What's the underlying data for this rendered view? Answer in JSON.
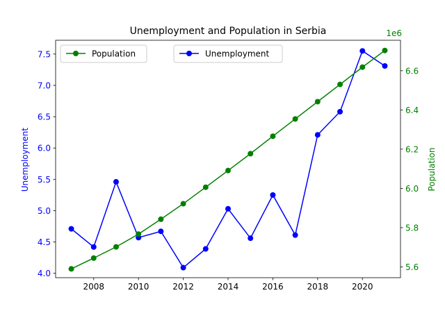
{
  "chart_data": {
    "type": "line",
    "title": "Unemployment and Population in Serbia",
    "xlabel": "",
    "x": [
      2007,
      2008,
      2009,
      2010,
      2011,
      2012,
      2013,
      2014,
      2015,
      2016,
      2017,
      2018,
      2019,
      2020,
      2021
    ],
    "xlim": [
      2006.3,
      2021.7
    ],
    "xticks": [
      "2008",
      "2010",
      "2012",
      "2014",
      "2016",
      "2018",
      "2020"
    ],
    "left_axis": {
      "label": "Unemployment",
      "color": "#0000ff",
      "ylim": [
        3.93,
        7.72
      ],
      "ticks": [
        "4.0",
        "4.5",
        "5.0",
        "5.5",
        "6.0",
        "6.5",
        "7.0",
        "7.5"
      ]
    },
    "right_axis": {
      "label": "Population",
      "color": "#008000",
      "offset_text": "1e6",
      "ylim": [
        5.545,
        6.755
      ],
      "ticks": [
        "5.6",
        "5.8",
        "6.0",
        "6.2",
        "6.4",
        "6.6"
      ]
    },
    "series": [
      {
        "name": "Unemployment",
        "axis": "left",
        "color": "#0000ff",
        "values": [
          4.71,
          4.42,
          5.46,
          4.57,
          4.67,
          4.09,
          4.39,
          5.03,
          4.56,
          5.25,
          4.61,
          6.21,
          6.58,
          7.55,
          7.31
        ]
      },
      {
        "name": "Population",
        "axis": "right",
        "color": "#008000",
        "values": [
          5.59,
          5.645,
          5.702,
          5.767,
          5.843,
          5.922,
          6.006,
          6.091,
          6.177,
          6.266,
          6.354,
          6.442,
          6.53,
          6.618,
          6.703
        ]
      }
    ],
    "legends": [
      {
        "placement": "upper-left",
        "entries": [
          "Population"
        ]
      },
      {
        "placement": "upper-center",
        "entries": [
          "Unemployment"
        ]
      }
    ],
    "grid": false
  }
}
